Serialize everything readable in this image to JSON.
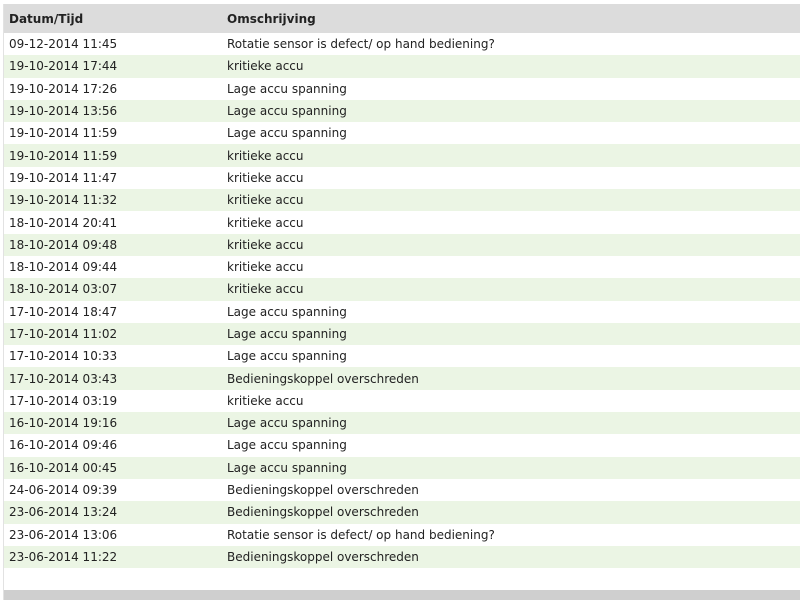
{
  "table": {
    "headers": [
      "Datum/Tijd",
      "Omschrijving"
    ],
    "rows": [
      [
        "09-12-2014 11:45",
        "Rotatie sensor is defect/ op hand bediening?"
      ],
      [
        "19-10-2014 17:44",
        "kritieke accu"
      ],
      [
        "19-10-2014 17:26",
        "Lage accu spanning"
      ],
      [
        "19-10-2014 13:56",
        "Lage accu spanning"
      ],
      [
        "19-10-2014 11:59",
        "Lage accu spanning"
      ],
      [
        "19-10-2014 11:59",
        "kritieke accu"
      ],
      [
        "19-10-2014 11:47",
        "kritieke accu"
      ],
      [
        "19-10-2014 11:32",
        "kritieke accu"
      ],
      [
        "18-10-2014 20:41",
        "kritieke accu"
      ],
      [
        "18-10-2014 09:48",
        "kritieke accu"
      ],
      [
        "18-10-2014 09:44",
        "kritieke accu"
      ],
      [
        "18-10-2014 03:07",
        "kritieke accu"
      ],
      [
        "17-10-2014 18:47",
        "Lage accu spanning"
      ],
      [
        "17-10-2014 11:02",
        "Lage accu spanning"
      ],
      [
        "17-10-2014 10:33",
        "Lage accu spanning"
      ],
      [
        "17-10-2014 03:43",
        "Bedieningskoppel overschreden"
      ],
      [
        "17-10-2014 03:19",
        "kritieke accu"
      ],
      [
        "16-10-2014 19:16",
        "Lage accu spanning"
      ],
      [
        "16-10-2014 09:46",
        "Lage accu spanning"
      ],
      [
        "16-10-2014 00:45",
        "Lage accu spanning"
      ],
      [
        "24-06-2014 09:39",
        "Bedieningskoppel overschreden"
      ],
      [
        "23-06-2014 13:24",
        "Bedieningskoppel overschreden"
      ],
      [
        "23-06-2014 13:06",
        "Rotatie sensor is defect/ op hand bediening?"
      ],
      [
        "23-06-2014 11:22",
        "Bedieningskoppel overschreden"
      ]
    ]
  },
  "colors": {
    "header_bg": "#dcdcdc",
    "alt_row_bg": "#ebf5e4"
  }
}
